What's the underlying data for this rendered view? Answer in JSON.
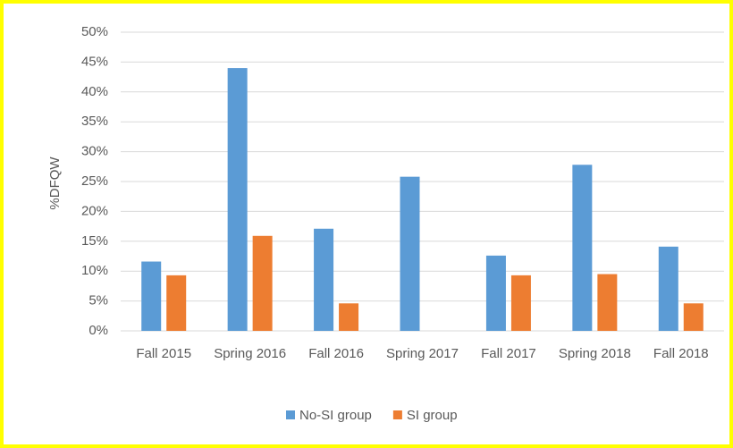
{
  "chart_data": {
    "type": "bar",
    "y_label": "%DFQW",
    "categories": [
      "Fall 2015",
      "Spring 2016",
      "Fall 2016",
      "Spring 2017",
      "Fall 2017",
      "Spring 2018",
      "Fall 2018"
    ],
    "series": [
      {
        "name": "No-SI group",
        "color": "#5b9bd5",
        "values": [
          11.6,
          44,
          17.1,
          25.8,
          12.6,
          27.8,
          14.1
        ]
      },
      {
        "name": "SI group",
        "color": "#ed7d31",
        "values": [
          9.3,
          15.9,
          4.6,
          0,
          9.3,
          9.5,
          4.6
        ]
      }
    ],
    "ylim": [
      0,
      50
    ],
    "yticks": [
      {
        "value": 0,
        "label": "0%"
      },
      {
        "value": 5,
        "label": "5%"
      },
      {
        "value": 10,
        "label": "10%"
      },
      {
        "value": 15,
        "label": "15%"
      },
      {
        "value": 20,
        "label": "20%"
      },
      {
        "value": 25,
        "label": "25%"
      },
      {
        "value": 30,
        "label": "30%"
      },
      {
        "value": 35,
        "label": "35%"
      },
      {
        "value": 40,
        "label": "40%"
      },
      {
        "value": 45,
        "label": "45%"
      },
      {
        "value": 50,
        "label": "50%"
      }
    ],
    "grid": true,
    "legend": "bottom"
  }
}
